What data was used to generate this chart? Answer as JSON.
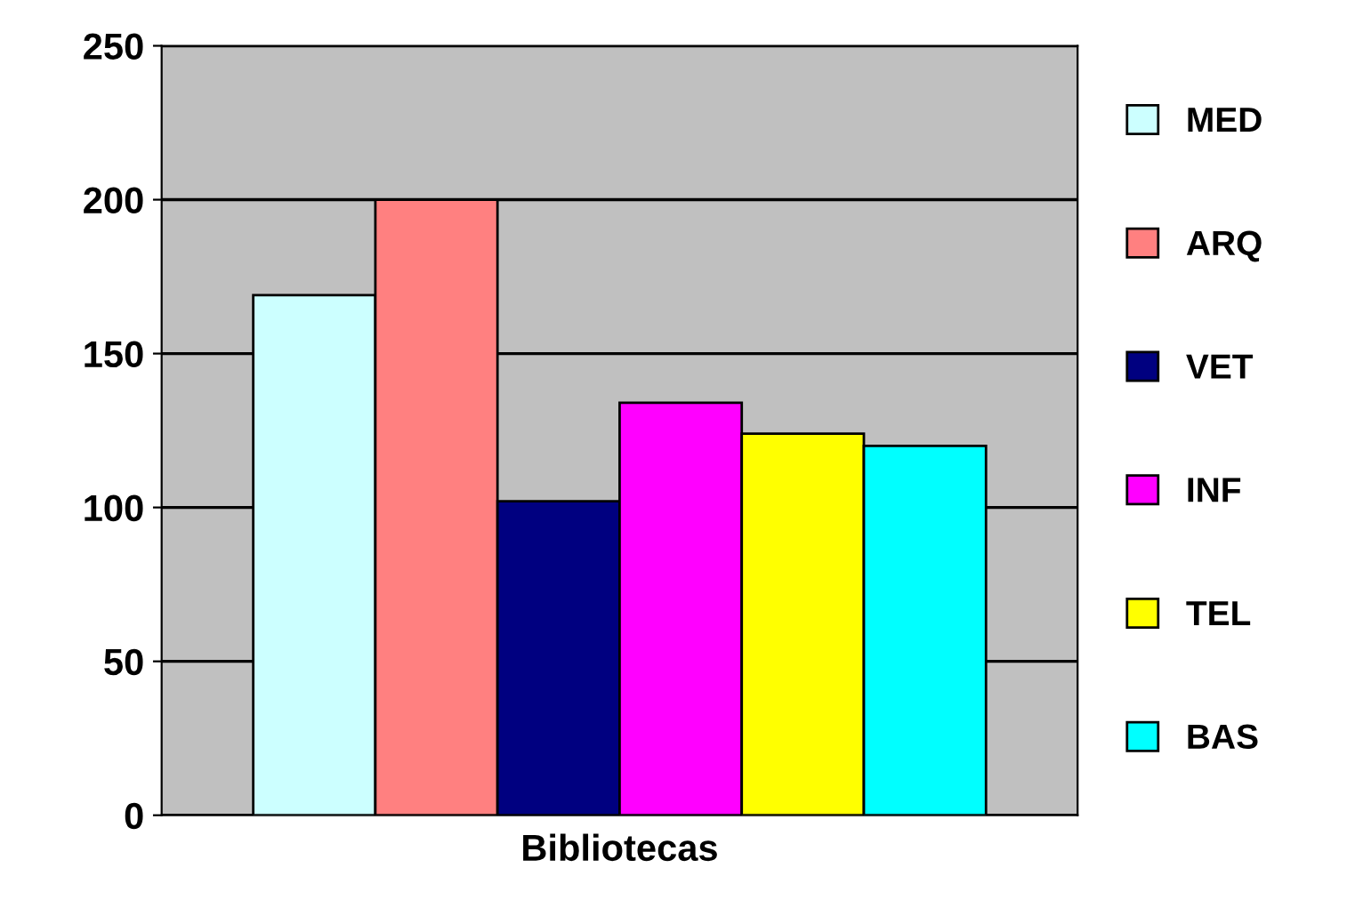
{
  "chart_data": {
    "type": "bar",
    "xlabel": "Bibliotecas",
    "categories": [
      null
    ],
    "series": [
      {
        "name": "MED",
        "color": "#ccffff",
        "values": [
          169
        ]
      },
      {
        "name": "ARQ",
        "color": "#ff8080",
        "values": [
          200
        ]
      },
      {
        "name": "VET",
        "color": "#000080",
        "values": [
          102
        ]
      },
      {
        "name": "INF",
        "color": "#ff00ff",
        "values": [
          134
        ]
      },
      {
        "name": "TEL",
        "color": "#ffff00",
        "values": [
          124
        ]
      },
      {
        "name": "BAS",
        "color": "#00ffff",
        "values": [
          120
        ]
      }
    ],
    "ylim": [
      0,
      250
    ],
    "yticks": [
      0,
      50,
      100,
      150,
      200,
      250
    ],
    "grid": "y",
    "legend": "right"
  }
}
